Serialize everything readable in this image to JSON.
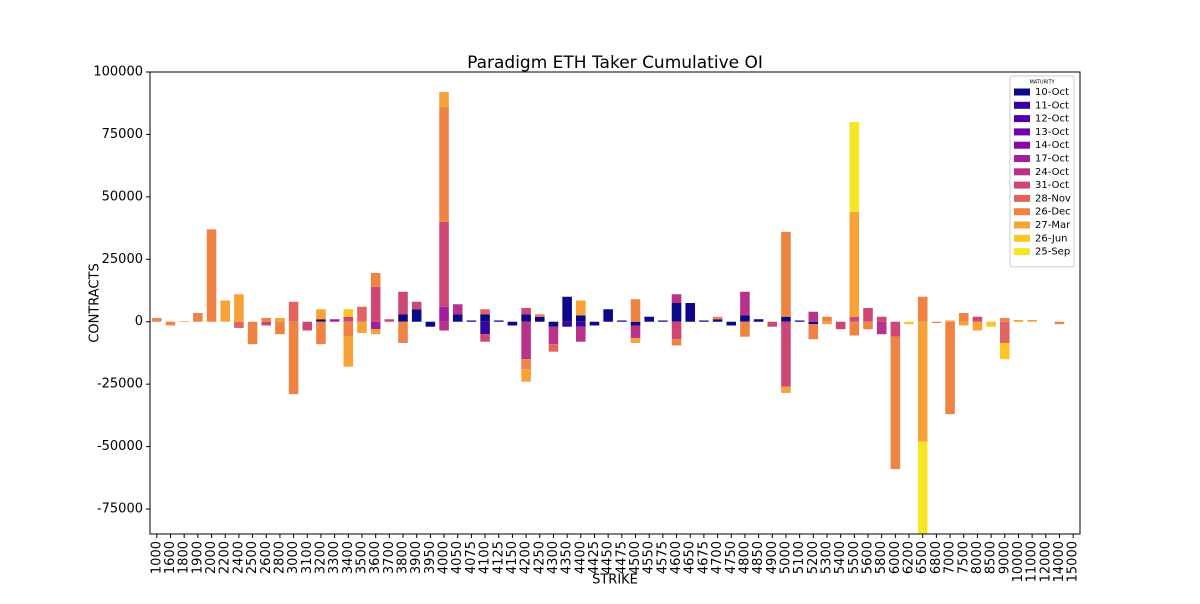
{
  "chart_data": {
    "type": "stacked_bar",
    "title": "Paradigm ETH Taker Cumulative OI",
    "x_label": "STRIKE",
    "y_label": "CONTRACTS",
    "legend_title": "MATURITY",
    "legend": "upper right",
    "categories": [
      "1000",
      "1600",
      "1800",
      "1900",
      "2000",
      "2200",
      "2400",
      "2500",
      "2600",
      "2800",
      "3000",
      "3100",
      "3200",
      "3300",
      "3400",
      "3500",
      "3600",
      "3700",
      "3800",
      "3900",
      "3950",
      "4000",
      "4050",
      "4075",
      "4100",
      "4125",
      "4150",
      "4200",
      "4250",
      "4300",
      "4350",
      "4400",
      "4425",
      "4450",
      "4475",
      "4500",
      "4550",
      "4575",
      "4600",
      "4650",
      "4675",
      "4700",
      "4750",
      "4800",
      "4850",
      "4900",
      "5000",
      "5100",
      "5200",
      "5300",
      "5400",
      "5500",
      "5600",
      "5800",
      "6000",
      "6200",
      "6500",
      "6800",
      "7000",
      "7500",
      "8000",
      "8500",
      "9000",
      "10000",
      "11000",
      "12000",
      "14000",
      "15000"
    ],
    "ylim": [
      -85000,
      100000
    ],
    "yticks": [
      -75000,
      -50000,
      -25000,
      0,
      25000,
      50000,
      75000,
      100000
    ],
    "series": [
      {
        "name": "10-Oct",
        "color": "#0d0887",
        "values": [
          0,
          0,
          0,
          0,
          0,
          0,
          0,
          0,
          0,
          0,
          0,
          0,
          1000,
          0,
          0,
          0,
          0,
          0,
          3000,
          5000,
          -2000,
          0,
          3000,
          500,
          3000,
          500,
          -1500,
          3000,
          2000,
          -2000,
          10000,
          2500,
          -1500,
          5000,
          500,
          -1500,
          2000,
          500,
          7500,
          7500,
          500,
          1000,
          -1500,
          2500,
          1000,
          0,
          2000,
          500,
          -1000,
          0,
          0,
          0,
          0,
          0,
          0,
          0,
          0,
          0,
          0,
          0,
          0,
          0,
          0,
          0,
          0,
          0,
          0,
          0
        ]
      },
      {
        "name": "11-Oct",
        "color": "#350498",
        "values": [
          0,
          0,
          0,
          0,
          0,
          0,
          0,
          0,
          0,
          0,
          0,
          0,
          0,
          0,
          0,
          0,
          0,
          0,
          0,
          0,
          0,
          0,
          0,
          0,
          -5000,
          0,
          0,
          0,
          0,
          0,
          -2000,
          -2000,
          0,
          0,
          0,
          0,
          0,
          0,
          0,
          0,
          0,
          0,
          0,
          0,
          0,
          0,
          0,
          0,
          0,
          0,
          0,
          0,
          0,
          0,
          0,
          0,
          0,
          0,
          0,
          0,
          0,
          0,
          0,
          0,
          0,
          0,
          0,
          0
        ]
      },
      {
        "name": "12-Oct",
        "color": "#5402a3",
        "values": [
          0,
          0,
          0,
          0,
          0,
          0,
          0,
          0,
          0,
          0,
          0,
          0,
          0,
          0,
          0,
          0,
          0,
          0,
          0,
          0,
          0,
          0,
          0,
          0,
          0,
          0,
          0,
          0,
          0,
          0,
          0,
          0,
          0,
          0,
          0,
          0,
          0,
          0,
          0,
          0,
          0,
          0,
          0,
          0,
          0,
          0,
          0,
          0,
          0,
          0,
          0,
          0,
          0,
          0,
          0,
          0,
          0,
          0,
          0,
          0,
          0,
          0,
          0,
          0,
          0,
          0,
          0,
          0
        ]
      },
      {
        "name": "13-Oct",
        "color": "#7000a8",
        "values": [
          0,
          0,
          0,
          0,
          0,
          0,
          0,
          0,
          0,
          0,
          0,
          0,
          0,
          0,
          0,
          0,
          0,
          0,
          0,
          0,
          0,
          0,
          0,
          0,
          0,
          0,
          0,
          0,
          0,
          0,
          0,
          0,
          0,
          0,
          0,
          0,
          0,
          0,
          0,
          0,
          0,
          0,
          0,
          0,
          0,
          0,
          0,
          0,
          0,
          0,
          0,
          0,
          0,
          0,
          0,
          0,
          0,
          0,
          0,
          0,
          0,
          0,
          0,
          0,
          0,
          0,
          0,
          0
        ]
      },
      {
        "name": "14-Oct",
        "color": "#8b0aa5",
        "values": [
          0,
          0,
          0,
          0,
          0,
          0,
          0,
          0,
          0,
          0,
          0,
          0,
          0,
          0,
          0,
          0,
          0,
          0,
          0,
          0,
          0,
          0,
          0,
          0,
          0,
          0,
          0,
          0,
          0,
          0,
          0,
          0,
          0,
          0,
          0,
          0,
          0,
          0,
          0,
          0,
          0,
          0,
          0,
          0,
          0,
          0,
          0,
          0,
          0,
          0,
          0,
          0,
          0,
          0,
          0,
          0,
          0,
          0,
          0,
          0,
          0,
          0,
          0,
          0,
          0,
          0,
          0,
          0
        ]
      },
      {
        "name": "17-Oct",
        "color": "#a31e9a",
        "values": [
          0,
          0,
          0,
          0,
          0,
          0,
          0,
          0,
          0,
          0,
          0,
          0,
          0,
          1000,
          0,
          0,
          -3000,
          0,
          0,
          0,
          0,
          6000,
          0,
          0,
          0,
          0,
          0,
          0,
          0,
          0,
          0,
          0,
          0,
          0,
          0,
          0,
          0,
          0,
          0,
          0,
          0,
          0,
          0,
          0,
          0,
          0,
          0,
          0,
          0,
          0,
          0,
          0,
          0,
          0,
          0,
          0,
          0,
          0,
          0,
          0,
          0,
          0,
          0,
          0,
          0,
          0,
          0,
          0
        ]
      },
      {
        "name": "24-Oct",
        "color": "#b93289",
        "values": [
          0,
          0,
          0,
          0,
          0,
          0,
          0,
          0,
          0,
          0,
          0,
          0,
          0,
          0,
          0,
          0,
          0,
          0,
          0,
          0,
          0,
          -3500,
          4000,
          0,
          0,
          0,
          0,
          -15000,
          0,
          -7000,
          0,
          -6000,
          0,
          0,
          0,
          -5000,
          0,
          0,
          3500,
          0,
          0,
          0,
          0,
          9500,
          0,
          0,
          0,
          0,
          4000,
          0,
          0,
          0,
          0,
          -5000,
          0,
          0,
          0,
          0,
          0,
          0,
          0,
          0,
          0,
          0,
          0,
          0,
          0,
          0
        ]
      },
      {
        "name": "31-Oct",
        "color": "#cc4778",
        "values": [
          0,
          0,
          0,
          0,
          0,
          0,
          0,
          0,
          -1500,
          0,
          0,
          -3500,
          0,
          0,
          2000,
          0,
          14000,
          1000,
          9000,
          3000,
          0,
          34000,
          0,
          0,
          -3000,
          0,
          0,
          2500,
          0,
          0,
          0,
          0,
          0,
          0,
          0,
          0,
          0,
          0,
          -7000,
          0,
          0,
          0,
          0,
          0,
          0,
          -2000,
          -26000,
          0,
          0,
          0,
          -3000,
          2000,
          5500,
          2000,
          -6000,
          0,
          0,
          0,
          0,
          0,
          2000,
          0,
          0,
          0,
          0,
          0,
          0,
          0
        ]
      },
      {
        "name": "28-Nov",
        "color": "#e16462",
        "values": [
          0,
          0,
          0,
          0,
          0,
          0,
          -2500,
          0,
          0,
          0,
          8000,
          0,
          0,
          0,
          0,
          6000,
          0,
          0,
          0,
          0,
          0,
          0,
          0,
          0,
          2000,
          0,
          0,
          0,
          0,
          -3000,
          0,
          0,
          0,
          0,
          0,
          0,
          0,
          0,
          0,
          0,
          0,
          0,
          0,
          0,
          0,
          0,
          0,
          0,
          0,
          0,
          0,
          0,
          0,
          0,
          0,
          0,
          0,
          0,
          0,
          0,
          0,
          0,
          -8500,
          0,
          0,
          0,
          0,
          0
        ]
      },
      {
        "name": "26-Dec",
        "color": "#ef8344",
        "values": [
          1500,
          -1500,
          0,
          3500,
          37000,
          0,
          0,
          -9000,
          1500,
          -5000,
          -29000,
          0,
          -9000,
          0,
          -6000,
          0,
          5500,
          0,
          -8500,
          0,
          0,
          46000,
          0,
          0,
          0,
          0,
          0,
          -4000,
          1000,
          0,
          0,
          0,
          0,
          0,
          0,
          9000,
          0,
          0,
          -2500,
          0,
          0,
          1000,
          0,
          -6000,
          0,
          0,
          34000,
          0,
          -6000,
          2000,
          0,
          -5500,
          -3000,
          0,
          -53000,
          0,
          10000,
          -500,
          -37000,
          3500,
          0,
          0,
          1500,
          0,
          0,
          0,
          -1000,
          0
        ]
      },
      {
        "name": "27-Mar",
        "color": "#f7a139",
        "values": [
          0,
          0,
          300,
          0,
          0,
          8500,
          11000,
          0,
          0,
          1500,
          0,
          0,
          4000,
          0,
          -12000,
          -4500,
          -2000,
          0,
          0,
          0,
          0,
          6000,
          0,
          0,
          0,
          0,
          0,
          -5000,
          0,
          0,
          0,
          6000,
          0,
          0,
          0,
          -2000,
          0,
          0,
          0,
          0,
          0,
          0,
          0,
          0,
          0,
          0,
          -2500,
          0,
          0,
          -1000,
          0,
          42000,
          0,
          0,
          0,
          0,
          -48000,
          0,
          500,
          -1500,
          -3500,
          0,
          0,
          700,
          700,
          0,
          0,
          0
        ]
      },
      {
        "name": "26-Jun",
        "color": "#fcc525",
        "values": [
          0,
          0,
          0,
          0,
          0,
          0,
          0,
          0,
          0,
          0,
          0,
          0,
          0,
          0,
          3000,
          0,
          0,
          0,
          0,
          0,
          0,
          0,
          0,
          0,
          0,
          0,
          0,
          0,
          0,
          0,
          0,
          0,
          0,
          0,
          0,
          0,
          0,
          0,
          0,
          0,
          0,
          0,
          0,
          0,
          0,
          0,
          0,
          0,
          0,
          0,
          0,
          0,
          0,
          0,
          0,
          -1000,
          0,
          0,
          0,
          0,
          0,
          -2000,
          -6500,
          0,
          0,
          0,
          0,
          0
        ]
      },
      {
        "name": "25-Sep",
        "color": "#f6e726",
        "values": [
          0,
          0,
          0,
          0,
          0,
          0,
          0,
          0,
          0,
          0,
          0,
          0,
          0,
          0,
          0,
          0,
          0,
          0,
          0,
          0,
          0,
          0,
          0,
          0,
          0,
          0,
          0,
          0,
          0,
          0,
          0,
          0,
          0,
          0,
          0,
          0,
          0,
          0,
          0,
          0,
          0,
          0,
          0,
          0,
          0,
          0,
          0,
          0,
          0,
          0,
          0,
          36000,
          0,
          0,
          0,
          0,
          -37000,
          0,
          0,
          0,
          0,
          0,
          0,
          0,
          0,
          0,
          0,
          0
        ]
      }
    ]
  }
}
